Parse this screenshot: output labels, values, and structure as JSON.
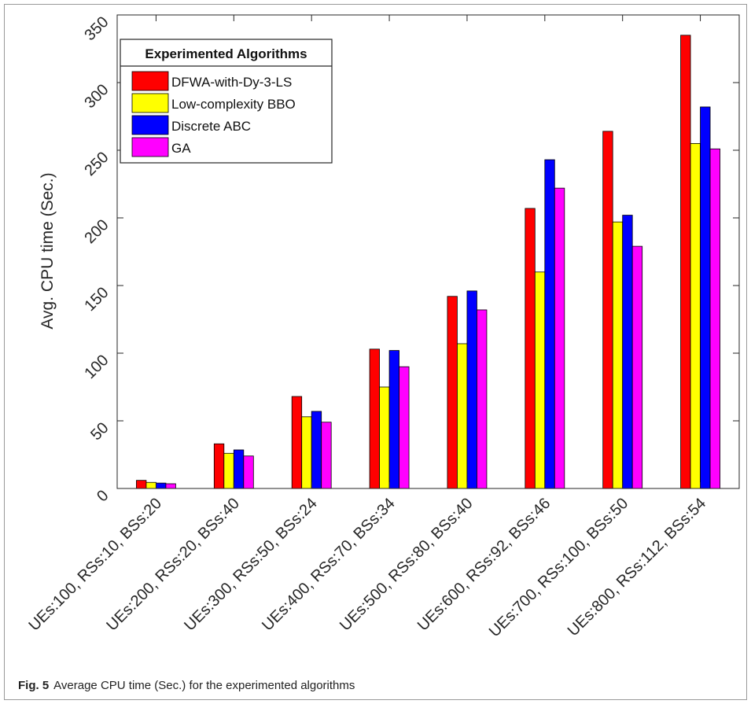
{
  "chart_data": {
    "type": "bar",
    "ylabel": "Avg. CPU time (Sec.)",
    "xlabel": "",
    "ylim": [
      0,
      350
    ],
    "yticks": [
      0,
      50,
      100,
      150,
      200,
      250,
      300,
      350
    ],
    "grid": false,
    "legend_title": "Experimented Algorithms",
    "legend_position": "top-left",
    "categories": [
      "UEs:100, RSs:10, BSs:20",
      "UEs:200, RSs:20, BSs:40",
      "UEs:300, RSs:50, BSs:24",
      "UEs:400, RSs:70, BSs:34",
      "UEs:500, RSs:80, BSs:40",
      "UEs:600, RSs:92, BSs:46",
      "UEs:700, RSs:100, BSs:50",
      "UEs:800, RSs:112, BSs:54"
    ],
    "series": [
      {
        "name": "DFWA-with-Dy-3-LS",
        "color": "#ff0000",
        "values": [
          6,
          33,
          68,
          103,
          142,
          207,
          264,
          335
        ]
      },
      {
        "name": "Low-complexity BBO",
        "color": "#ffff00",
        "values": [
          4.5,
          26,
          53,
          75,
          107,
          160,
          197,
          255
        ]
      },
      {
        "name": "Discrete ABC",
        "color": "#0000ff",
        "values": [
          4,
          28.5,
          57,
          102,
          146,
          243,
          202,
          282
        ]
      },
      {
        "name": "GA",
        "color": "#ff00ff",
        "values": [
          3.5,
          24,
          49,
          90,
          132,
          222,
          179,
          251
        ]
      }
    ]
  },
  "caption": {
    "label": "Fig. 5",
    "text": "Average CPU time (Sec.) for the experimented algorithms"
  }
}
